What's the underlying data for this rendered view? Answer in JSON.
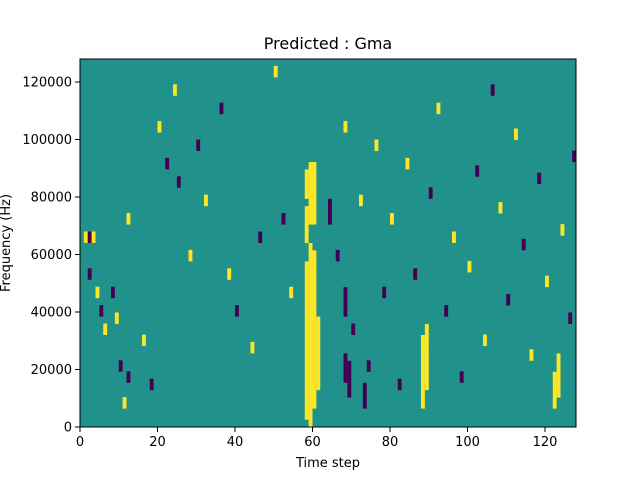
{
  "chart_data": {
    "type": "heatmap",
    "title": "Predicted : Gma",
    "xlabel": "Time step",
    "ylabel": "Frequency (Hz)",
    "xlim": [
      0,
      128
    ],
    "ylim": [
      0,
      128000
    ],
    "x_ticks": [
      0,
      20,
      40,
      60,
      80,
      100,
      120
    ],
    "y_ticks": [
      0,
      20000,
      40000,
      60000,
      80000,
      100000,
      120000
    ],
    "x_tick_labels": [
      "0",
      "20",
      "40",
      "60",
      "80",
      "100",
      "120"
    ],
    "y_tick_labels": [
      "0",
      "20000",
      "40000",
      "60000",
      "80000",
      "100000",
      "120000"
    ],
    "grid": false,
    "colors": {
      "background": "#21918c",
      "low": "#440154",
      "high": "#fde725",
      "axes": "#000000"
    },
    "value_levels": {
      "background": 0.5,
      "low": 0,
      "high": 1
    },
    "cell_height_hz": 4000,
    "cells": [
      {
        "x": 1,
        "y": 0.5,
        "v": 1
      },
      {
        "x": 2,
        "y": 0.5,
        "v": 0
      },
      {
        "x": 3,
        "y": 0.5,
        "v": 1
      },
      {
        "x": 2,
        "y": 0.4,
        "v": 0
      },
      {
        "x": 4,
        "y": 0.35,
        "v": 1
      },
      {
        "x": 5,
        "y": 0.3,
        "v": 0
      },
      {
        "x": 6,
        "y": 0.25,
        "v": 1
      },
      {
        "x": 8,
        "y": 0.35,
        "v": 0
      },
      {
        "x": 9,
        "y": 0.28,
        "v": 1
      },
      {
        "x": 10,
        "y": 0.15,
        "v": 0
      },
      {
        "x": 11,
        "y": 0.05,
        "v": 1
      },
      {
        "x": 12,
        "y": 0.12,
        "v": 0
      },
      {
        "x": 12,
        "y": 0.55,
        "v": 1
      },
      {
        "x": 16,
        "y": 0.22,
        "v": 1
      },
      {
        "x": 18,
        "y": 0.1,
        "v": 0
      },
      {
        "x": 20,
        "y": 0.8,
        "v": 1
      },
      {
        "x": 22,
        "y": 0.7,
        "v": 0
      },
      {
        "x": 24,
        "y": 0.9,
        "v": 1
      },
      {
        "x": 25,
        "y": 0.65,
        "v": 0
      },
      {
        "x": 28,
        "y": 0.45,
        "v": 1
      },
      {
        "x": 30,
        "y": 0.75,
        "v": 0
      },
      {
        "x": 32,
        "y": 0.6,
        "v": 1
      },
      {
        "x": 36,
        "y": 0.85,
        "v": 0
      },
      {
        "x": 38,
        "y": 0.4,
        "v": 1
      },
      {
        "x": 40,
        "y": 0.3,
        "v": 0
      },
      {
        "x": 44,
        "y": 0.2,
        "v": 1
      },
      {
        "x": 46,
        "y": 0.5,
        "v": 0
      },
      {
        "x": 50,
        "y": 0.95,
        "v": 1
      },
      {
        "x": 52,
        "y": 0.55,
        "v": 0
      },
      {
        "x": 54,
        "y": 0.35,
        "v": 1
      },
      {
        "x": 66,
        "y": 0.45,
        "v": 0
      },
      {
        "x": 68,
        "y": 0.8,
        "v": 1
      },
      {
        "x": 70,
        "y": 0.25,
        "v": 0
      },
      {
        "x": 72,
        "y": 0.6,
        "v": 1
      },
      {
        "x": 74,
        "y": 0.15,
        "v": 0
      },
      {
        "x": 76,
        "y": 0.75,
        "v": 1
      },
      {
        "x": 78,
        "y": 0.35,
        "v": 0
      },
      {
        "x": 80,
        "y": 0.55,
        "v": 1
      },
      {
        "x": 82,
        "y": 0.1,
        "v": 0
      },
      {
        "x": 84,
        "y": 0.7,
        "v": 1
      },
      {
        "x": 86,
        "y": 0.4,
        "v": 0
      },
      {
        "x": 88,
        "y": 0.2,
        "v": 1
      },
      {
        "x": 90,
        "y": 0.62,
        "v": 0
      },
      {
        "x": 92,
        "y": 0.85,
        "v": 1
      },
      {
        "x": 94,
        "y": 0.3,
        "v": 0
      },
      {
        "x": 96,
        "y": 0.5,
        "v": 1
      },
      {
        "x": 98,
        "y": 0.12,
        "v": 0
      },
      {
        "x": 100,
        "y": 0.42,
        "v": 1
      },
      {
        "x": 102,
        "y": 0.68,
        "v": 0
      },
      {
        "x": 104,
        "y": 0.22,
        "v": 1
      },
      {
        "x": 106,
        "y": 0.9,
        "v": 0
      },
      {
        "x": 108,
        "y": 0.58,
        "v": 1
      },
      {
        "x": 110,
        "y": 0.33,
        "v": 0
      },
      {
        "x": 112,
        "y": 0.78,
        "v": 1
      },
      {
        "x": 114,
        "y": 0.48,
        "v": 0
      },
      {
        "x": 116,
        "y": 0.18,
        "v": 1
      },
      {
        "x": 118,
        "y": 0.66,
        "v": 0
      },
      {
        "x": 120,
        "y": 0.38,
        "v": 1
      },
      {
        "x": 122,
        "y": 0.08,
        "v": 0
      },
      {
        "x": 124,
        "y": 0.52,
        "v": 1
      },
      {
        "x": 126,
        "y": 0.28,
        "v": 0
      },
      {
        "x": 127,
        "y": 0.72,
        "v": 0
      }
    ],
    "columns": [
      {
        "x": 58,
        "spans": [
          [
            0.02,
            0.45,
            1
          ],
          [
            0.5,
            0.6,
            1
          ],
          [
            0.62,
            0.7,
            1
          ]
        ]
      },
      {
        "x": 59,
        "spans": [
          [
            0.0,
            0.5,
            1
          ],
          [
            0.55,
            0.72,
            1
          ]
        ]
      },
      {
        "x": 60,
        "spans": [
          [
            0.05,
            0.48,
            1
          ],
          [
            0.55,
            0.72,
            1
          ]
        ]
      },
      {
        "x": 61,
        "spans": [
          [
            0.1,
            0.3,
            1
          ]
        ]
      },
      {
        "x": 64,
        "spans": [
          [
            0.55,
            0.62,
            0
          ]
        ]
      },
      {
        "x": 68,
        "spans": [
          [
            0.12,
            0.2,
            0
          ],
          [
            0.3,
            0.38,
            0
          ]
        ]
      },
      {
        "x": 69,
        "spans": [
          [
            0.08,
            0.18,
            0
          ]
        ]
      },
      {
        "x": 73,
        "spans": [
          [
            0.05,
            0.12,
            0
          ]
        ]
      },
      {
        "x": 88,
        "spans": [
          [
            0.05,
            0.25,
            1
          ]
        ]
      },
      {
        "x": 89,
        "spans": [
          [
            0.1,
            0.28,
            1
          ]
        ]
      },
      {
        "x": 122,
        "spans": [
          [
            0.05,
            0.15,
            1
          ]
        ]
      },
      {
        "x": 123,
        "spans": [
          [
            0.08,
            0.2,
            1
          ]
        ]
      }
    ]
  }
}
